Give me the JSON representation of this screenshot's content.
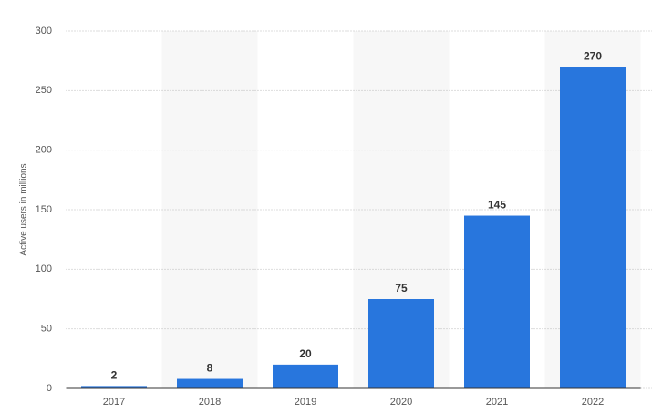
{
  "chart_data": {
    "type": "bar",
    "y_label": "Active users in millions",
    "categories": [
      "2017",
      "2018",
      "2019",
      "2020",
      "2021",
      "2022"
    ],
    "values": [
      2,
      8,
      20,
      75,
      145,
      270
    ],
    "color": "#2876dd",
    "ylim": [
      0,
      300
    ],
    "yticks": [
      0,
      50,
      100,
      150,
      200,
      250,
      300
    ],
    "grid": true
  }
}
